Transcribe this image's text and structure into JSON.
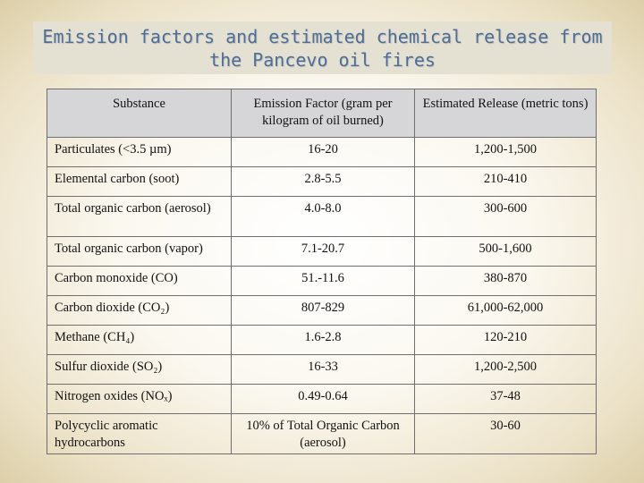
{
  "title": {
    "line1": "Emission factors and estimated chemical release from",
    "line2": "the Pancevo oil fires"
  },
  "table": {
    "headers": [
      "Substance",
      "Emission Factor  (gram per kilogram of oil burned)",
      "Estimated Release (metric tons)"
    ],
    "rows": [
      {
        "substance": "Particulates (<3.5 µm)",
        "factor": "16-20",
        "release": "1,200-1,500"
      },
      {
        "substance": "Elemental carbon (soot)",
        "factor": "2.8-5.5",
        "release": "210-410"
      },
      {
        "substance": "Total organic carbon (aerosol)",
        "factor": "4.0-8.0",
        "release": "300-600"
      },
      {
        "substance": "Total organic carbon (vapor)",
        "factor": "7.1-20.7",
        "release": "500-1,600"
      },
      {
        "substance": "Carbon monoxide (CO)",
        "factor": "51.-11.6",
        "release": "380-870"
      },
      {
        "substance": "Carbon dioxide  (CO₂)",
        "factor": "807-829",
        "release": "61,000-62,000"
      },
      {
        "substance": "Methane (CH₄)",
        "factor": "1.6-2.8",
        "release": "120-210"
      },
      {
        "substance": "Sulfur dioxide (SO₂)",
        "factor": "16-33",
        "release": "1,200-2,500"
      },
      {
        "substance": "Nitrogen oxides (NOₓ)",
        "factor": "0.49-0.64",
        "release": "37-48"
      },
      {
        "substance": "Polycyclic aromatic hydrocarbons",
        "factor": "10% of Total Organic Carbon (aerosol)",
        "release": "30-60"
      }
    ]
  }
}
